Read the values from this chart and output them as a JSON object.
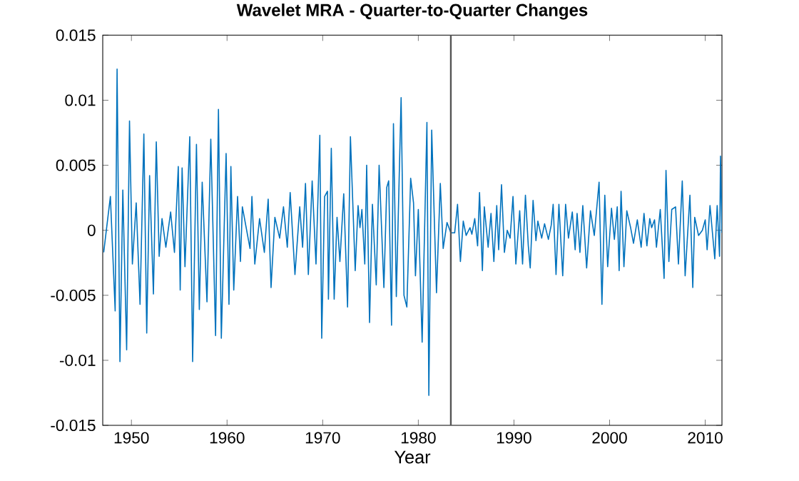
{
  "chart_data": {
    "type": "line",
    "title": "Wavelet MRA - Quarter-to-Quarter Changes",
    "xlabel": "Year",
    "x": [
      1947.1,
      1947.8,
      1948.3,
      1948.5,
      1948.8,
      1949.1,
      1949.5,
      1949.8,
      1950.1,
      1950.5,
      1950.9,
      1951.3,
      1951.6,
      1951.9,
      1952.3,
      1952.6,
      1952.9,
      1953.2,
      1953.6,
      1954.1,
      1954.5,
      1954.9,
      1955.1,
      1955.3,
      1955.6,
      1956.1,
      1956.4,
      1956.8,
      1957.1,
      1957.4,
      1957.9,
      1958.3,
      1958.8,
      1959.1,
      1959.4,
      1959.9,
      1960.2,
      1960.4,
      1960.7,
      1961.1,
      1961.4,
      1961.6,
      1962.4,
      1962.6,
      1962.9,
      1963.4,
      1963.9,
      1964.3,
      1964.6,
      1965.0,
      1965.5,
      1965.9,
      1966.3,
      1966.6,
      1967.1,
      1967.6,
      1967.9,
      1968.2,
      1968.5,
      1968.9,
      1969.3,
      1969.7,
      1969.9,
      1970.2,
      1970.5,
      1970.6,
      1970.9,
      1971.2,
      1971.5,
      1971.8,
      1972.2,
      1972.6,
      1972.9,
      1973.4,
      1973.7,
      1973.9,
      1974.1,
      1974.4,
      1974.6,
      1974.9,
      1975.2,
      1975.6,
      1975.9,
      1976.4,
      1976.7,
      1976.9,
      1977.2,
      1977.4,
      1977.7,
      1978.2,
      1978.5,
      1978.8,
      1979.2,
      1979.5,
      1979.7,
      1980.0,
      1980.4,
      1980.9,
      1981.1,
      1981.4,
      1981.9,
      1982.3,
      1982.6,
      1983.0,
      1983.4,
      1983.8,
      1984.1,
      1984.4,
      1984.7,
      1985.0,
      1985.4,
      1985.6,
      1985.9,
      1986.2,
      1986.4,
      1986.7,
      1986.9,
      1987.3,
      1987.6,
      1987.9,
      1988.2,
      1988.4,
      1988.7,
      1989.0,
      1989.3,
      1989.6,
      1989.9,
      1990.2,
      1990.6,
      1990.9,
      1991.2,
      1991.5,
      1991.7,
      1992.0,
      1992.3,
      1992.5,
      1992.9,
      1993.2,
      1993.6,
      1993.9,
      1994.1,
      1994.4,
      1994.7,
      1995.1,
      1995.4,
      1995.7,
      1996.1,
      1996.4,
      1996.6,
      1996.9,
      1997.2,
      1997.6,
      1998.0,
      1998.4,
      1998.9,
      1999.2,
      1999.5,
      1999.8,
      2000.2,
      2000.5,
      2000.8,
      2001.0,
      2001.2,
      2001.5,
      2001.8,
      2002.2,
      2002.5,
      2002.9,
      2003.3,
      2003.6,
      2003.9,
      2004.2,
      2004.4,
      2004.7,
      2004.9,
      2005.3,
      2005.7,
      2005.9,
      2006.2,
      2006.5,
      2006.9,
      2007.2,
      2007.6,
      2007.9,
      2008.4,
      2008.7,
      2008.9,
      2009.3,
      2009.7,
      2010.0,
      2010.2,
      2010.5,
      2011.0,
      2011.25,
      2011.5,
      2011.6,
      2011.75
    ],
    "values": [
      -0.0017,
      0.0026,
      -0.0062,
      0.0124,
      -0.0101,
      0.0031,
      -0.0092,
      0.0084,
      -0.0026,
      0.0021,
      -0.0057,
      0.0074,
      -0.0079,
      0.0042,
      -0.0049,
      0.0068,
      -0.002,
      0.0009,
      -0.0013,
      0.0014,
      -0.0017,
      0.0049,
      -0.0046,
      0.0048,
      -0.0028,
      0.0072,
      -0.0101,
      0.0066,
      -0.0061,
      0.0037,
      -0.0055,
      0.007,
      -0.0081,
      0.0093,
      -0.0083,
      0.0059,
      -0.0057,
      0.0049,
      -0.0046,
      0.0026,
      -0.0024,
      0.0018,
      -0.0014,
      0.0026,
      -0.0026,
      0.0009,
      -0.0017,
      0.0024,
      -0.0044,
      0.001,
      -0.0006,
      0.0018,
      -0.0013,
      0.0029,
      -0.0034,
      0.0018,
      -0.0013,
      0.0036,
      -0.0034,
      0.0038,
      -0.0026,
      0.0073,
      -0.0083,
      0.0026,
      0.003,
      -0.0053,
      0.0063,
      -0.0053,
      0.001,
      -0.0024,
      0.0028,
      -0.0059,
      0.0072,
      -0.0031,
      0.0019,
      0.0002,
      0.0016,
      -0.0026,
      0.005,
      -0.0071,
      0.002,
      -0.0042,
      0.005,
      -0.0044,
      0.0033,
      0.0038,
      -0.0073,
      0.0082,
      -0.0051,
      0.0102,
      -0.005,
      -0.0059,
      0.004,
      0.0021,
      -0.0035,
      0.0016,
      -0.0086,
      0.0083,
      -0.0127,
      0.0077,
      -0.0048,
      0.0036,
      -0.0014,
      0.0006,
      -0.0002,
      -0.0002,
      0.002,
      -0.0024,
      0.0007,
      -0.0004,
      0.0002,
      -0.0003,
      0.0009,
      -0.0012,
      0.0029,
      -0.0031,
      0.0018,
      -0.0013,
      0.0013,
      -0.0024,
      0.0019,
      -0.0015,
      0.0035,
      -0.0017,
      0.0,
      -0.0006,
      0.0026,
      -0.0026,
      0.0015,
      -0.0026,
      0.0027,
      -0.0012,
      -0.0029,
      0.0023,
      -0.0008,
      0.0007,
      -0.0006,
      0.0005,
      -0.0007,
      0.0004,
      0.002,
      -0.0034,
      0.002,
      -0.0035,
      0.002,
      -0.0006,
      0.0014,
      -0.0015,
      0.0013,
      -0.0017,
      0.0019,
      -0.0029,
      0.0015,
      -0.0004,
      0.0037,
      -0.0057,
      0.0027,
      -0.0028,
      0.0017,
      -0.0007,
      0.0018,
      -0.0031,
      0.003,
      -0.0028,
      0.0015,
      0.0002,
      -0.001,
      0.0008,
      -0.0013,
      0.0013,
      -0.0012,
      0.0009,
      0.0002,
      0.0008,
      -0.0013,
      0.0016,
      -0.0037,
      0.0046,
      -0.0024,
      0.0016,
      0.0018,
      -0.0026,
      0.0038,
      -0.0035,
      0.0027,
      -0.0044,
      0.001,
      -0.0004,
      0.0,
      0.0008,
      -0.0015,
      0.0019,
      -0.0022,
      0.0019,
      -0.002,
      0.0057,
      -0.0002
    ],
    "color": "#0072bd",
    "line_style": "solid",
    "marker": "none",
    "xlim": [
      1947,
      2011.75
    ],
    "ylim": [
      -0.015,
      0.015
    ],
    "xticks": [
      1950,
      1960,
      1970,
      1980,
      1990,
      2000,
      2010
    ],
    "yticks": [
      -0.015,
      -0.01,
      -0.005,
      0,
      0.005,
      0.01,
      0.015
    ],
    "ref_lines": [
      {
        "axis": "x",
        "value": 1983.4,
        "color": "#555555"
      }
    ],
    "grid": false
  }
}
